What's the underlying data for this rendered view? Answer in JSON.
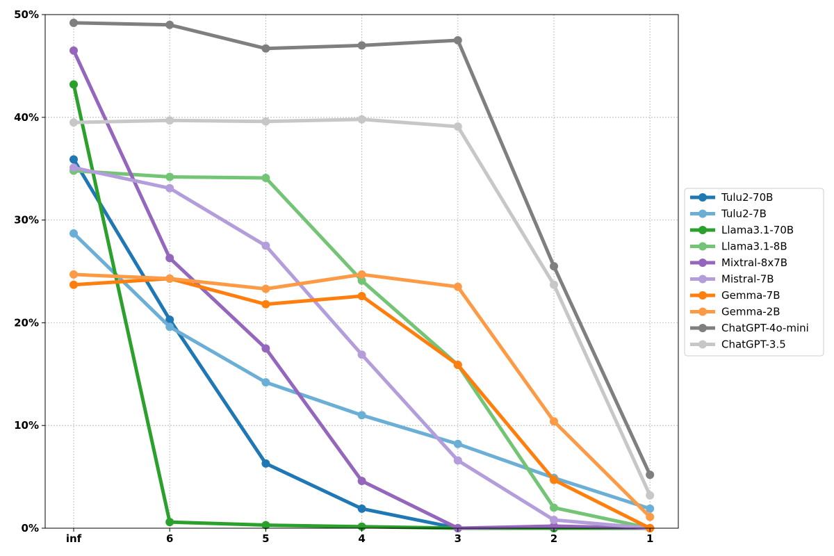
{
  "chart_data": {
    "type": "line",
    "title": "",
    "xlabel": "",
    "ylabel": "",
    "categories": [
      "inf",
      "6",
      "5",
      "4",
      "3",
      "2",
      "1"
    ],
    "ylim": [
      0,
      50
    ],
    "yticks": [
      "0%",
      "10%",
      "20%",
      "30%",
      "40%",
      "50%"
    ],
    "y_unit": "%",
    "grid": true,
    "legend_position": "center-right",
    "series": [
      {
        "name": "Tulu2-70B",
        "color": "#1f77b4",
        "values": [
          35.9,
          20.3,
          6.3,
          1.9,
          0.0,
          0.0,
          0.0
        ]
      },
      {
        "name": "Tulu2-7B",
        "color": "#6baed6",
        "values": [
          28.7,
          19.6,
          14.2,
          11.0,
          8.2,
          4.9,
          1.9
        ]
      },
      {
        "name": "Llama3.1-70B",
        "color": "#2ca02c",
        "values": [
          43.2,
          0.6,
          0.3,
          0.15,
          0.0,
          0.0,
          0.0
        ]
      },
      {
        "name": "Llama3.1-8B",
        "color": "#74c476",
        "values": [
          34.8,
          34.2,
          34.1,
          24.1,
          15.9,
          2.0,
          0.0
        ]
      },
      {
        "name": "Mixtral-8x7B",
        "color": "#9467bd",
        "values": [
          46.5,
          26.3,
          17.5,
          4.6,
          0.0,
          0.2,
          0.0
        ]
      },
      {
        "name": "Mistral-7B",
        "color": "#b39ddb",
        "values": [
          35.1,
          33.1,
          27.5,
          16.9,
          6.6,
          0.8,
          0.0
        ]
      },
      {
        "name": "Gemma-7B",
        "color": "#ff7f0e",
        "values": [
          23.7,
          24.3,
          21.8,
          22.6,
          15.9,
          4.7,
          0.0
        ]
      },
      {
        "name": "Gemma-2B",
        "color": "#fd9a45",
        "values": [
          24.7,
          24.3,
          23.3,
          24.7,
          23.5,
          10.4,
          1.1
        ]
      },
      {
        "name": "ChatGPT-4o-mini",
        "color": "#7f7f7f",
        "values": [
          49.2,
          49.0,
          46.7,
          47.0,
          47.5,
          25.5,
          5.2
        ]
      },
      {
        "name": "ChatGPT-3.5",
        "color": "#c7c7c7",
        "values": [
          39.5,
          39.7,
          39.6,
          39.8,
          39.1,
          23.7,
          3.2
        ]
      }
    ]
  }
}
